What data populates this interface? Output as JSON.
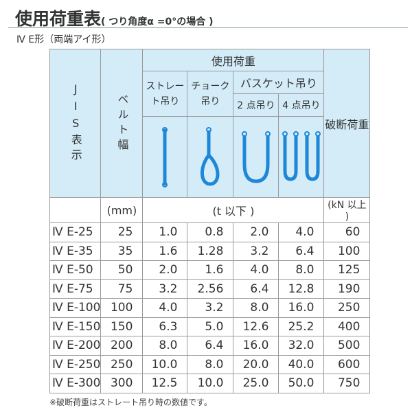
{
  "title": "使用荷重表",
  "subtitle": "( つり角度α =0°の場合 )",
  "type_label": "Ⅳ E形（両端アイ形）",
  "headers": {
    "jis": "JIS表示",
    "belt": "ベルト幅",
    "working_load": "使用荷重",
    "straight": "ストレート吊り",
    "choke": "チョーク吊り",
    "basket": "バスケット吊り",
    "two_point": "2 点吊り",
    "four_point": "4 点吊り",
    "breaking": "破断荷重"
  },
  "units": {
    "belt": "(mm)",
    "load": "(t 以下 )",
    "breaking": "(kN 以上 )"
  },
  "rows": [
    [
      "Ⅳ E-25",
      "25",
      "1.0",
      "0.8",
      "2.0",
      "4.0",
      "60"
    ],
    [
      "Ⅳ E-35",
      "35",
      "1.6",
      "1.28",
      "3.2",
      "6.4",
      "100"
    ],
    [
      "Ⅳ E-50",
      "50",
      "2.0",
      "1.6",
      "4.0",
      "8.0",
      "125"
    ],
    [
      "Ⅳ E-75",
      "75",
      "3.2",
      "2.56",
      "6.4",
      "12.8",
      "190"
    ],
    [
      "Ⅳ E-100",
      "100",
      "4.0",
      "3.2",
      "8.0",
      "16.0",
      "250"
    ],
    [
      "Ⅳ E-150",
      "150",
      "6.3",
      "5.0",
      "12.6",
      "25.2",
      "400"
    ],
    [
      "Ⅳ E-200",
      "200",
      "8.0",
      "6.4",
      "16.0",
      "32.0",
      "500"
    ],
    [
      "Ⅳ E-250",
      "250",
      "10.0",
      "8.0",
      "20.0",
      "40.0",
      "600"
    ],
    [
      "Ⅳ E-300",
      "300",
      "12.5",
      "10.0",
      "25.0",
      "50.0",
      "750"
    ]
  ],
  "note": "※破断荷重はストレート吊り時の数値です。",
  "colors": {
    "header_bg": "#d3ecf8",
    "sling": "#1e88d8"
  }
}
